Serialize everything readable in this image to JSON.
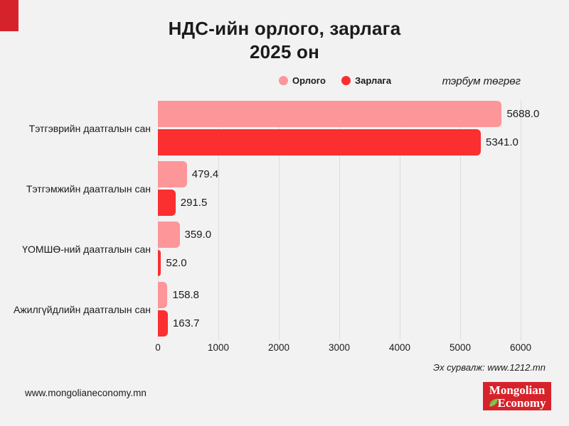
{
  "header": {
    "title_line1": "НДС-ийн орлого, зарлага",
    "title_line2": "2025 он",
    "unit_label": "тэрбум төгрөг"
  },
  "chart_data": {
    "type": "bar",
    "orientation": "horizontal",
    "title": "НДС-ийн орлого, зарлага 2025 он",
    "unit": "тэрбум төгрөг",
    "categories": [
      "Тэтгэврийн даатгалын сан",
      "Тэтгэмжийн даатгалын сан",
      "ҮОМШӨ-ний даатгалын сан",
      "Ажилгүйдлийн даатгалын сан"
    ],
    "series": [
      {
        "name": "Орлого",
        "color": "#FC9699",
        "values": [
          5688.0,
          479.4,
          359.0,
          158.8
        ]
      },
      {
        "name": "Зарлага",
        "color": "#FB2E30",
        "values": [
          5341.0,
          291.5,
          52.0,
          163.7
        ]
      }
    ],
    "xlim": [
      0,
      6000
    ],
    "x_ticks": [
      "0",
      "1000",
      "2000",
      "3000",
      "4000",
      "5000",
      "6000"
    ],
    "grid": true,
    "legend_position": "top",
    "value_label_decimals": 1
  },
  "footer": {
    "source": "Эх сурвалж: www.1212.mn",
    "website": "www.mongolianeconomy.mn",
    "logo_line1": "Mongolian",
    "logo_line2": "Economy"
  },
  "colors": {
    "accent_red": "#D6232B",
    "background": "#F2F2F2",
    "income": "#FC9699",
    "expense": "#FB2E30",
    "gridline": "#DCDCDC"
  }
}
